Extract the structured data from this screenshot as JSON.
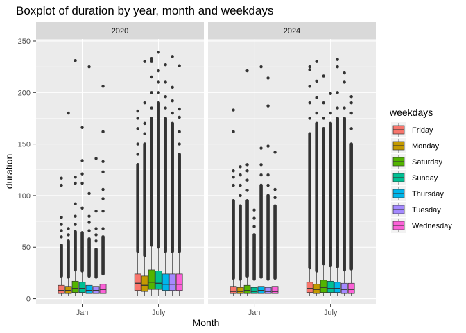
{
  "chart_data": {
    "type": "boxplot",
    "title": "Boxplot of duration by year, month and weekdays",
    "xlabel": "Month",
    "ylabel": "duration",
    "ylim": [
      -5,
      252
    ],
    "yticks": [
      0,
      50,
      100,
      150,
      200,
      250
    ],
    "categories": [
      "Jan",
      "July"
    ],
    "panels": [
      "2020",
      "2024"
    ],
    "legend": {
      "title": "weekdays",
      "position": "right",
      "entries": [
        {
          "name": "Friday",
          "color": "#F8766D"
        },
        {
          "name": "Monday",
          "color": "#C49A00"
        },
        {
          "name": "Saturday",
          "color": "#53B400"
        },
        {
          "name": "Sunday",
          "color": "#00C094"
        },
        {
          "name": "Thursday",
          "color": "#00B6EB"
        },
        {
          "name": "Tuesday",
          "color": "#A58AFF"
        },
        {
          "name": "Wednesday",
          "color": "#FB61D7"
        }
      ]
    },
    "grid": true,
    "data": {
      "2020": {
        "Jan": [
          {
            "day": "Friday",
            "low": 3,
            "q1": 5,
            "median": 8,
            "q3": 13,
            "high": 22,
            "dense_to": 52,
            "outliers": [
              60,
              66,
              72,
              79,
              110,
              117
            ]
          },
          {
            "day": "Monday",
            "low": 3,
            "q1": 5,
            "median": 8,
            "q3": 12,
            "high": 21,
            "dense_to": 56,
            "outliers": [
              62,
              68,
              180
            ]
          },
          {
            "day": "Saturday",
            "low": 3,
            "q1": 6,
            "median": 10,
            "q3": 17,
            "high": 28,
            "dense_to": 65,
            "outliers": [
              72,
              80,
              92,
              112,
              118,
              231
            ]
          },
          {
            "day": "Sunday",
            "low": 3,
            "q1": 6,
            "median": 10,
            "q3": 16,
            "high": 27,
            "dense_to": 64,
            "outliers": [
              88,
              112,
              121,
              134,
              166
            ]
          },
          {
            "day": "Thursday",
            "low": 3,
            "q1": 5,
            "median": 8,
            "q3": 13,
            "high": 22,
            "dense_to": 58,
            "outliers": [
              66,
              74,
              80,
              102,
              225
            ]
          },
          {
            "day": "Tuesday",
            "low": 3,
            "q1": 5,
            "median": 8,
            "q3": 12,
            "high": 21,
            "dense_to": 48,
            "outliers": [
              56,
              62,
              68,
              85,
              136
            ]
          },
          {
            "day": "Wednesday",
            "low": 3,
            "q1": 5,
            "median": 9,
            "q3": 14,
            "high": 24,
            "dense_to": 60,
            "outliers": [
              68,
              85,
              97,
              106,
              123,
              133,
              162,
              206
            ]
          }
        ],
        "July": [
          {
            "day": "Friday",
            "low": 3,
            "q1": 8,
            "median": 15,
            "q3": 24,
            "high": 46,
            "dense_to": 130,
            "outliers": [
              140,
              150,
              165,
              175,
              182
            ]
          },
          {
            "day": "Monday",
            "low": 3,
            "q1": 7,
            "median": 13,
            "q3": 22,
            "high": 42,
            "dense_to": 150,
            "outliers": [
              160,
              170,
              190,
              230
            ]
          },
          {
            "day": "Saturday",
            "low": 3,
            "q1": 9,
            "median": 16,
            "q3": 28,
            "high": 52,
            "dense_to": 175,
            "outliers": [
              185,
              200,
              215,
              230,
              233
            ]
          },
          {
            "day": "Sunday",
            "low": 3,
            "q1": 9,
            "median": 15,
            "q3": 27,
            "high": 50,
            "dense_to": 190,
            "outliers": [
              200,
              210,
              221,
              239
            ]
          },
          {
            "day": "Thursday",
            "low": 3,
            "q1": 8,
            "median": 14,
            "q3": 24,
            "high": 46,
            "dense_to": 175,
            "outliers": [
              185,
              196,
              210,
              227
            ]
          },
          {
            "day": "Tuesday",
            "low": 3,
            "q1": 8,
            "median": 14,
            "q3": 24,
            "high": 46,
            "dense_to": 170,
            "outliers": [
              180,
              192,
              205,
              235
            ]
          },
          {
            "day": "Wednesday",
            "low": 3,
            "q1": 8,
            "median": 14,
            "q3": 24,
            "high": 46,
            "dense_to": 140,
            "outliers": [
              150,
              162,
              176,
              184,
              226
            ]
          }
        ]
      },
      "2024": {
        "Jan": [
          {
            "day": "Friday",
            "low": 3,
            "q1": 5,
            "median": 7,
            "q3": 12,
            "high": 20,
            "dense_to": 95,
            "outliers": [
              110,
              118,
              124,
              162,
              183
            ]
          },
          {
            "day": "Monday",
            "low": 3,
            "q1": 5,
            "median": 7,
            "q3": 11,
            "high": 19,
            "dense_to": 90,
            "outliers": [
              100,
              110,
              120,
              128
            ]
          },
          {
            "day": "Saturday",
            "low": 3,
            "q1": 5,
            "median": 8,
            "q3": 13,
            "high": 22,
            "dense_to": 95,
            "outliers": [
              105,
              115,
              124,
              130,
              221
            ]
          },
          {
            "day": "Sunday",
            "low": 3,
            "q1": 5,
            "median": 7,
            "q3": 11,
            "high": 19,
            "dense_to": 62,
            "outliers": [
              70,
              78,
              86
            ]
          },
          {
            "day": "Thursday",
            "low": 3,
            "q1": 5,
            "median": 8,
            "q3": 12,
            "high": 21,
            "dense_to": 110,
            "outliers": [
              120,
              130,
              146,
              225
            ]
          },
          {
            "day": "Tuesday",
            "low": 3,
            "q1": 5,
            "median": 7,
            "q3": 11,
            "high": 19,
            "dense_to": 100,
            "outliers": [
              110,
              120,
              148,
              187,
              214
            ]
          },
          {
            "day": "Wednesday",
            "low": 3,
            "q1": 5,
            "median": 7,
            "q3": 12,
            "high": 20,
            "dense_to": 90,
            "outliers": [
              98,
              106,
              142
            ]
          }
        ],
        "July": [
          {
            "day": "Friday",
            "low": 3,
            "q1": 6,
            "median": 10,
            "q3": 16,
            "high": 30,
            "dense_to": 160,
            "outliers": [
              175,
              190,
              206,
              222,
              225
            ]
          },
          {
            "day": "Monday",
            "low": 3,
            "q1": 5,
            "median": 9,
            "q3": 14,
            "high": 27,
            "dense_to": 170,
            "outliers": [
              180,
              195,
              211,
              230
            ]
          },
          {
            "day": "Saturday",
            "low": 3,
            "q1": 6,
            "median": 11,
            "q3": 18,
            "high": 34,
            "dense_to": 165,
            "outliers": [
              175,
              190,
              216
            ]
          },
          {
            "day": "Sunday",
            "low": 3,
            "q1": 6,
            "median": 10,
            "q3": 17,
            "high": 32,
            "dense_to": 170,
            "outliers": [
              180,
              199
            ]
          },
          {
            "day": "Thursday",
            "low": 3,
            "q1": 6,
            "median": 10,
            "q3": 16,
            "high": 31,
            "dense_to": 175,
            "outliers": [
              185,
              200,
              225,
              232
            ]
          },
          {
            "day": "Tuesday",
            "low": 3,
            "q1": 5,
            "median": 9,
            "q3": 15,
            "high": 28,
            "dense_to": 175,
            "outliers": [
              185,
              210,
              219
            ]
          },
          {
            "day": "Wednesday",
            "low": 3,
            "q1": 5,
            "median": 9,
            "q3": 15,
            "high": 29,
            "dense_to": 150,
            "outliers": [
              165,
              180,
              190,
              196
            ]
          }
        ]
      }
    }
  }
}
